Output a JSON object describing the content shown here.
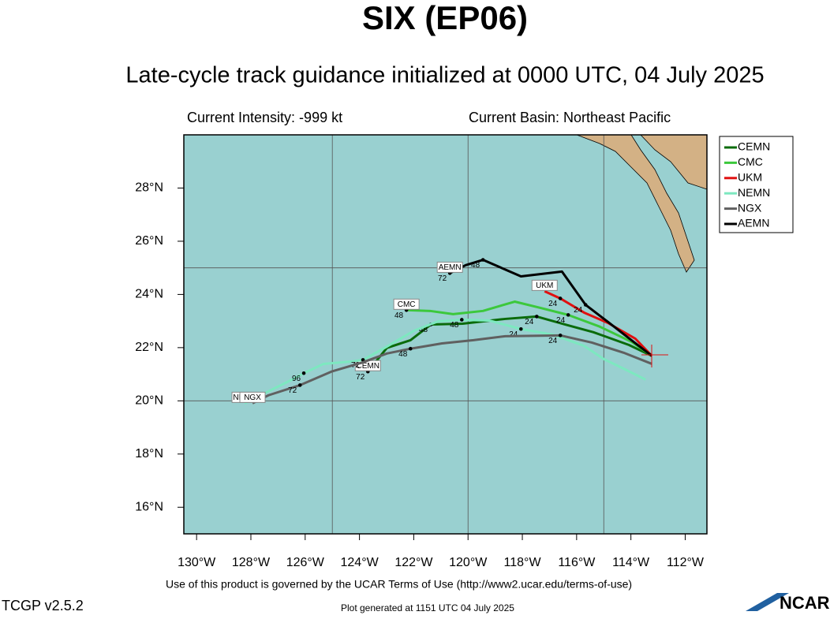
{
  "chart_data": {
    "type": "line",
    "title": "SIX (EP06)",
    "subtitle": "Late-cycle track guidance initialized at 0000 UTC, 04 July 2025",
    "intensity": "Current Intensity: -999 kt",
    "basin": "Current Basin: Northeast Pacific",
    "xlim": [
      -130.47,
      -111.2
    ],
    "ylim": [
      15,
      30
    ],
    "xticks": [
      {
        "value": -130,
        "label": "130°W"
      },
      {
        "value": -128,
        "label": "128°W"
      },
      {
        "value": -126,
        "label": "126°W"
      },
      {
        "value": -124,
        "label": "124°W"
      },
      {
        "value": -122,
        "label": "122°W"
      },
      {
        "value": -120,
        "label": "120°W"
      },
      {
        "value": -118,
        "label": "118°W"
      },
      {
        "value": -116,
        "label": "116°W"
      },
      {
        "value": -114,
        "label": "114°W"
      },
      {
        "value": -112,
        "label": "112°W"
      }
    ],
    "yticks": [
      {
        "value": 16,
        "label": "16°N"
      },
      {
        "value": 18,
        "label": "18°N"
      },
      {
        "value": 20,
        "label": "20°N"
      },
      {
        "value": 22,
        "label": "22°N"
      },
      {
        "value": 24,
        "label": "24°N"
      },
      {
        "value": 26,
        "label": "26°N"
      },
      {
        "value": 28,
        "label": "28°N"
      }
    ],
    "xgrid": [
      -125,
      -120,
      -115
    ],
    "ygrid": [
      20,
      25
    ],
    "legend": "upper right",
    "series": [
      {
        "name": "CEMN",
        "color": "#0a6b0a",
        "x": [
          -113.23,
          -114.07,
          -115.38,
          -116.42,
          -117.47,
          -118.63,
          -120.2,
          -121.37,
          -122.12,
          -122.99,
          -123.69
        ],
        "values": [
          21.69,
          22.1,
          22.58,
          22.87,
          23.17,
          23.08,
          22.9,
          22.87,
          22.28,
          21.99,
          21.1
        ],
        "point_labels": [
          null,
          null,
          null,
          null,
          "24",
          null,
          null,
          "48",
          null,
          null,
          "72"
        ]
      },
      {
        "name": "CMC",
        "color": "#3cc83c",
        "x": [
          -113.23,
          -113.98,
          -115.15,
          -116.31,
          -117.35,
          -118.28,
          -119.45,
          -120.55,
          -121.4,
          -122.27
        ],
        "values": [
          21.69,
          22.22,
          22.79,
          23.23,
          23.5,
          23.73,
          23.38,
          23.26,
          23.38,
          23.41
        ],
        "point_labels": [
          null,
          null,
          null,
          "24",
          null,
          null,
          null,
          null,
          null,
          "48"
        ]
      },
      {
        "name": "UKM",
        "color": "#e01010",
        "x": [
          -113.23,
          -113.84,
          -114.85,
          -115.73,
          -116.6,
          -117.18
        ],
        "values": [
          21.69,
          22.34,
          22.93,
          23.32,
          23.85,
          24.12
        ],
        "point_labels": [
          null,
          null,
          null,
          null,
          "24",
          null
        ]
      },
      {
        "name": "NEMN",
        "color": "#7de8c0",
        "x": [
          -113.46,
          -114.27,
          -115.0,
          -115.73,
          -116.89,
          -118.05,
          -119.22,
          -120.23,
          -121.1,
          -121.98,
          -122.99,
          -123.87,
          -124.27,
          -125.32,
          -126.05,
          -126.48,
          -127.35,
          -128.23
        ],
        "values": [
          20.8,
          21.21,
          21.57,
          22.07,
          22.49,
          22.7,
          23.02,
          23.05,
          22.99,
          22.64,
          22.04,
          21.54,
          21.48,
          21.39,
          21.04,
          20.8,
          20.36,
          19.91
        ],
        "point_labels": [
          null,
          null,
          null,
          null,
          null,
          "24",
          null,
          "48",
          null,
          null,
          null,
          "72",
          null,
          null,
          "96",
          null,
          null,
          null
        ]
      },
      {
        "name": "NGX",
        "color": "#606060",
        "x": [
          -113.23,
          -114.27,
          -115.44,
          -116.6,
          -118.63,
          -119.8,
          -120.96,
          -122.12,
          -122.99,
          -123.87,
          -125.03,
          -126.19,
          -127.35,
          -127.94
        ],
        "values": [
          21.39,
          21.81,
          22.19,
          22.46,
          22.43,
          22.28,
          22.16,
          21.96,
          21.78,
          21.45,
          21.1,
          20.59,
          20.21,
          19.91
        ],
        "point_labels": [
          null,
          null,
          null,
          "24",
          null,
          null,
          null,
          "48",
          null,
          null,
          null,
          "72",
          null,
          null
        ]
      },
      {
        "name": "AEMN",
        "color": "#000000",
        "x": [
          -113.23,
          -113.98,
          -114.8,
          -115.67,
          -116.54,
          -118.05,
          -119.45,
          -120.09,
          -120.67
        ],
        "values": [
          21.69,
          22.28,
          22.93,
          23.61,
          24.86,
          24.68,
          25.3,
          25.1,
          24.8
        ],
        "point_labels": [
          null,
          null,
          null,
          "24",
          null,
          null,
          "48",
          null,
          "72"
        ]
      }
    ]
  },
  "footer": {
    "terms": "Use of this product is governed by the UCAR Terms of Use (http://www2.ucar.edu/terms-of-use)",
    "version": "TCGP v2.5.2",
    "generated": "Plot generated at 1151 UTC   04 July 2025",
    "logo": "NCAR"
  }
}
